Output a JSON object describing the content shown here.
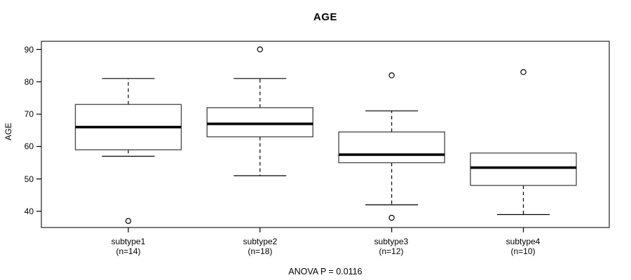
{
  "title": "AGE",
  "y_axis_label": "AGE",
  "annotation": "ANOVA P = 0.0116",
  "chart_data": {
    "type": "boxplot",
    "title": "AGE",
    "xlabel": "",
    "ylabel": "AGE",
    "annotation": "ANOVA P = 0.0116",
    "ylim": [
      35,
      92.5
    ],
    "yticks": [
      40,
      50,
      60,
      70,
      80,
      90
    ],
    "grid": false,
    "legend": "none",
    "categories": [
      "subtype1",
      "subtype2",
      "subtype3",
      "subtype4"
    ],
    "boxes": [
      {
        "label": "subtype1",
        "sublabel": "(n=14)",
        "n": 14,
        "whisker_low": 57,
        "q1": 59,
        "median": 66,
        "q3": 73,
        "whisker_high": 81,
        "outliers": [
          37
        ]
      },
      {
        "label": "subtype2",
        "sublabel": "(n=18)",
        "n": 18,
        "whisker_low": 51,
        "q1": 63,
        "median": 67,
        "q3": 72,
        "whisker_high": 81,
        "outliers": [
          90
        ]
      },
      {
        "label": "subtype3",
        "sublabel": "(n=12)",
        "n": 12,
        "whisker_low": 42,
        "q1": 55,
        "median": 57.5,
        "q3": 64.5,
        "whisker_high": 71,
        "outliers": [
          82,
          38
        ]
      },
      {
        "label": "subtype4",
        "sublabel": "(n=10)",
        "n": 10,
        "whisker_low": 39,
        "q1": 48,
        "median": 53.5,
        "q3": 58,
        "whisker_high": 58,
        "outliers": [
          83
        ]
      }
    ],
    "colors": {
      "line": "#000000",
      "box_border": "#444444",
      "median": "#000000",
      "axis": "#333333",
      "background": "#ffffff"
    }
  }
}
